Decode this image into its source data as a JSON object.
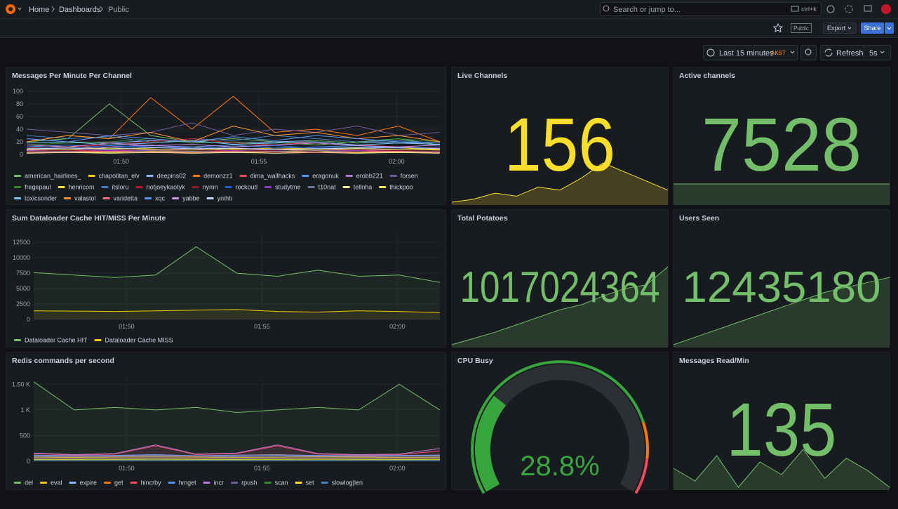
{
  "header": {
    "breadcrumb": [
      "Home",
      "Dashboards",
      "Public"
    ],
    "search_placeholder": "Search or jump to...",
    "search_shortcut": "ctrl+k"
  },
  "toolbar": {
    "badge": "Public",
    "export": "Export",
    "share": "Share"
  },
  "time_controls": {
    "range": "Last 15 minutes",
    "timezone": "AKST",
    "refresh": "Refresh",
    "interval": "5s"
  },
  "panels": [
    {
      "title": "Messages Per Minute Per Channel",
      "type": "line",
      "grid": true,
      "fill": false,
      "x": [
        0,
        1.5,
        3,
        4.5,
        6,
        7.5,
        9,
        10.5,
        12,
        13.5,
        15
      ],
      "xlim": [
        0,
        15
      ],
      "xticks": [
        {
          "value": 3.43,
          "label": "01:50"
        },
        {
          "value": 8.43,
          "label": "01:55"
        },
        {
          "value": 13.43,
          "label": "02:00"
        }
      ],
      "ylim": [
        0,
        100
      ],
      "yticks": [
        0,
        20,
        40,
        60,
        80,
        100
      ],
      "series": [
        {
          "name": "american_hairlines_",
          "color": "#73BF69",
          "values": [
            20,
            25,
            80,
            30,
            20,
            25,
            20,
            15,
            20,
            25,
            15
          ]
        },
        {
          "name": "chapotitan_elv",
          "color": "#F2CC0C",
          "values": [
            10,
            12,
            8,
            10,
            12,
            8,
            10,
            9,
            11,
            10,
            8
          ]
        },
        {
          "name": "deepins02",
          "color": "#8AB8FF",
          "values": [
            25,
            20,
            18,
            22,
            20,
            18,
            20,
            22,
            18,
            20,
            15
          ]
        },
        {
          "name": "demonzz1",
          "color": "#FF780A",
          "values": [
            20,
            30,
            25,
            90,
            40,
            92,
            35,
            40,
            30,
            45,
            20
          ]
        },
        {
          "name": "dima_wallhacks",
          "color": "#F2495C",
          "values": [
            5,
            6,
            5,
            7,
            5,
            6,
            8,
            5,
            6,
            5,
            4
          ]
        },
        {
          "name": "eragonuk",
          "color": "#5794F2",
          "values": [
            12,
            15,
            10,
            14,
            12,
            15,
            10,
            12,
            14,
            10,
            12
          ]
        },
        {
          "name": "erobb221",
          "color": "#B877D9",
          "values": [
            8,
            10,
            12,
            15,
            10,
            12,
            14,
            10,
            8,
            12,
            10
          ]
        },
        {
          "name": "forsen",
          "color": "#705DA0",
          "values": [
            40,
            35,
            30,
            35,
            50,
            30,
            40,
            35,
            45,
            30,
            35
          ]
        },
        {
          "name": "fregepaul",
          "color": "#37872D",
          "values": [
            15,
            18,
            20,
            25,
            18,
            20,
            15,
            22,
            18,
            25,
            20
          ]
        },
        {
          "name": "henricom",
          "color": "#FADE2A",
          "values": [
            3,
            4,
            3,
            5,
            4,
            3,
            4,
            5,
            3,
            4,
            3
          ]
        },
        {
          "name": "itsloru",
          "color": "#447EBC",
          "values": [
            30,
            25,
            28,
            20,
            25,
            22,
            30,
            25,
            20,
            22,
            18
          ]
        },
        {
          "name": "notjoeykaotyk",
          "color": "#C4162A",
          "values": [
            10,
            12,
            15,
            20,
            25,
            18,
            15,
            20,
            15,
            12,
            10
          ]
        },
        {
          "name": "nymn",
          "color": "#8F1A2A",
          "values": [
            5,
            6,
            8,
            6,
            5,
            7,
            6,
            5,
            8,
            6,
            5
          ]
        },
        {
          "name": "rockoutl",
          "color": "#1F60C4",
          "values": [
            12,
            10,
            14,
            12,
            10,
            12,
            14,
            10,
            12,
            10,
            12
          ]
        },
        {
          "name": "studytme",
          "color": "#8F3BB8",
          "values": [
            6,
            8,
            6,
            7,
            9,
            6,
            8,
            7,
            6,
            8,
            7
          ]
        },
        {
          "name": "t10nat",
          "color": "#6D7A9C",
          "values": [
            4,
            5,
            4,
            6,
            5,
            4,
            5,
            6,
            4,
            5,
            4
          ]
        },
        {
          "name": "tellnha",
          "color": "#FFF899",
          "values": [
            2,
            3,
            2,
            3,
            2,
            3,
            2,
            3,
            2,
            3,
            2
          ]
        },
        {
          "name": "thickpoo",
          "color": "#FFEE52",
          "values": [
            7,
            8,
            10,
            8,
            7,
            9,
            8,
            7,
            9,
            8,
            7
          ]
        },
        {
          "name": "toxicsonder",
          "color": "#73C7F2",
          "values": [
            18,
            20,
            15,
            18,
            22,
            16,
            18,
            20,
            15,
            18,
            16
          ]
        },
        {
          "name": "valastol",
          "color": "#FF9830",
          "values": [
            20,
            30,
            25,
            35,
            20,
            45,
            30,
            35,
            25,
            30,
            20
          ]
        },
        {
          "name": "varidetta",
          "color": "#FF7383",
          "values": [
            3,
            4,
            5,
            4,
            3,
            5,
            4,
            3,
            4,
            5,
            3
          ]
        },
        {
          "name": "xqc",
          "color": "#5794F2",
          "values": [
            25,
            20,
            30,
            25,
            20,
            28,
            22,
            30,
            25,
            20,
            18
          ]
        },
        {
          "name": "yabbe",
          "color": "#CA95E5",
          "values": [
            15,
            12,
            18,
            14,
            16,
            12,
            15,
            18,
            14,
            12,
            15
          ]
        },
        {
          "name": "ynihb",
          "color": "#C0D8FF",
          "values": [
            9,
            10,
            8,
            11,
            9,
            10,
            8,
            9,
            10,
            11,
            9
          ]
        }
      ]
    },
    {
      "title": "Live Channels",
      "type": "stat",
      "value": 156,
      "color": "#FADE2A",
      "sparkline": [
        142,
        143,
        145,
        144,
        147,
        146,
        150,
        155,
        152,
        149,
        146
      ]
    },
    {
      "title": "Active channels",
      "type": "stat",
      "value": 7528,
      "color": "#73BF69",
      "sparkline": [
        7528,
        7528,
        7528,
        7528,
        7528,
        7528,
        7528,
        7528,
        7528,
        7528,
        7528
      ]
    },
    {
      "title": "Sum Dataloader Cache HIT/MISS Per Minute",
      "type": "line",
      "grid": true,
      "fill": true,
      "x": [
        0,
        1.5,
        3,
        4.5,
        6,
        7.5,
        9,
        10.5,
        12,
        13.5,
        15
      ],
      "xlim": [
        0,
        15
      ],
      "xticks": [
        {
          "value": 3.43,
          "label": "01:50"
        },
        {
          "value": 8.43,
          "label": "01:55"
        },
        {
          "value": 13.43,
          "label": "02:00"
        }
      ],
      "ylim": [
        0,
        14000
      ],
      "yticks": [
        0,
        2500,
        5000,
        7500,
        10000,
        12500
      ],
      "series": [
        {
          "name": "Dataloader Cache HIT",
          "color": "#73BF69",
          "values": [
            7600,
            7200,
            6800,
            7200,
            11800,
            7500,
            7000,
            8000,
            7000,
            7200,
            6000
          ]
        },
        {
          "name": "Dataloader Cache MISS",
          "color": "#F2CC0C",
          "values": [
            1400,
            1350,
            1300,
            1400,
            1500,
            1600,
            1300,
            1200,
            1400,
            1300,
            1100
          ]
        }
      ]
    },
    {
      "title": "Total Potatoes",
      "type": "stat",
      "value": 1017024364,
      "color": "#73BF69",
      "sparkline": [
        1016400000,
        1016450000,
        1016500000,
        1016560000,
        1016620000,
        1016680000,
        1016720000,
        1016790000,
        1016850000,
        1016880000,
        1017024364
      ]
    },
    {
      "title": "Users Seen",
      "type": "stat",
      "value": 12435180,
      "color": "#73BF69",
      "sparkline": [
        12300000,
        12315000,
        12330000,
        12345000,
        12360000,
        12375000,
        12390000,
        12405000,
        12415000,
        12425000,
        12435180
      ]
    },
    {
      "title": "Redis commands per second",
      "type": "line",
      "grid": true,
      "fill": true,
      "x": [
        0,
        1.5,
        3,
        4.5,
        6,
        7.5,
        9,
        10.5,
        12,
        13.5,
        15
      ],
      "xlim": [
        0,
        15
      ],
      "xticks": [
        {
          "value": 3.43,
          "label": "01:50"
        },
        {
          "value": 8.43,
          "label": "01:55"
        },
        {
          "value": 13.43,
          "label": "02:00"
        }
      ],
      "ylim": [
        0,
        1600
      ],
      "yticks": [
        0,
        500,
        {
          "value": 1000,
          "label": "1 K"
        },
        {
          "value": 1500,
          "label": "1.50 K"
        }
      ],
      "series": [
        {
          "name": "del",
          "color": "#73BF69",
          "values": [
            1550,
            1000,
            1050,
            1000,
            1050,
            950,
            1000,
            1050,
            1000,
            1500,
            1000
          ]
        },
        {
          "name": "eval",
          "color": "#F2CC0C",
          "values": [
            80,
            75,
            80,
            85,
            80,
            75,
            80,
            85,
            80,
            75,
            80
          ]
        },
        {
          "name": "expire",
          "color": "#8AB8FF",
          "values": [
            100,
            95,
            100,
            110,
            100,
            95,
            105,
            100,
            95,
            100,
            105
          ]
        },
        {
          "name": "get",
          "color": "#FF780A",
          "values": [
            120,
            100,
            110,
            130,
            100,
            120,
            130,
            110,
            100,
            110,
            120
          ]
        },
        {
          "name": "hincrby",
          "color": "#F2495C",
          "values": [
            150,
            120,
            140,
            300,
            130,
            150,
            300,
            140,
            120,
            130,
            200
          ]
        },
        {
          "name": "hmget",
          "color": "#5794F2",
          "values": [
            120,
            110,
            115,
            130,
            110,
            120,
            125,
            115,
            110,
            115,
            120
          ]
        },
        {
          "name": "incr",
          "color": "#B877D9",
          "values": [
            160,
            130,
            150,
            320,
            140,
            160,
            320,
            150,
            130,
            140,
            250
          ]
        },
        {
          "name": "rpush",
          "color": "#705DA0",
          "values": [
            60,
            55,
            60,
            65,
            60,
            55,
            60,
            65,
            60,
            55,
            60
          ]
        },
        {
          "name": "scan",
          "color": "#37872D",
          "values": [
            30,
            28,
            30,
            32,
            30,
            28,
            30,
            32,
            30,
            28,
            30
          ]
        },
        {
          "name": "set",
          "color": "#FADE2A",
          "values": [
            40,
            38,
            40,
            42,
            40,
            38,
            40,
            42,
            40,
            38,
            40
          ]
        },
        {
          "name": "slowlog|len",
          "color": "#447EBC",
          "values": [
            10,
            10,
            10,
            10,
            10,
            10,
            10,
            10,
            10,
            10,
            10
          ]
        }
      ]
    },
    {
      "title": "CPU Busy",
      "type": "gauge",
      "value": 28.8,
      "value_label": "28.8%",
      "color": "#37A63C"
    },
    {
      "title": "Messages Read/Min",
      "type": "stat",
      "value": 135,
      "color": "#73BF69",
      "sparkline": [
        120,
        110,
        130,
        105,
        125,
        115,
        135,
        112,
        128,
        118,
        105
      ]
    }
  ]
}
